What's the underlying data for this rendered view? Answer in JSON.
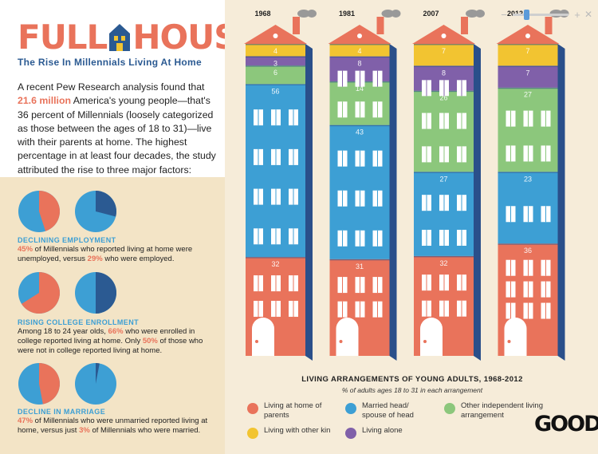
{
  "header": {
    "logo_left": "FULL",
    "logo_right": "HOUSE",
    "subtitle": "The Rise In Millennials Living At Home"
  },
  "intro": {
    "before": "A recent Pew Research analysis found that ",
    "highlight": "21.6 million",
    "after": " America's young people—that's 36 percent of Millennials (loosely categorized as those between the ages of 18 to 31)—live with their parents at home. The highest percentage in at least four decades, the study attributed the rise to three major factors:"
  },
  "factors": [
    {
      "title": "DECLINING EMPLOYMENT",
      "pies": [
        0.45,
        0.29
      ],
      "hl1": "45%",
      "t1": " of Millennials who reported living at home were unemployed, versus ",
      "hl2": "29%",
      "t2": " who were employed."
    },
    {
      "title": "RISING COLLEGE ENROLLMENT",
      "pies": [
        0.66,
        0.5
      ],
      "t0": "Among 18 to 24 year olds, ",
      "hl1": "66%",
      "t1": " who were enrolled in college reported living at home. Only ",
      "hl2": "50%",
      "t2": " of those who were not in college reported living at home."
    },
    {
      "title": "DECLINE IN MARRIAGE",
      "pies": [
        0.47,
        0.03
      ],
      "hl1": "47%",
      "t1": " of Millennials who were unmarried reported living at home, versus just ",
      "hl2": "3%",
      "t2": " of Millennials who were married."
    }
  ],
  "chart_data": {
    "type": "bar",
    "title": "LIVING ARRANGEMENTS OF YOUNG ADULTS, 1968-2012",
    "subtitle": "% of adults ages 18 to 31 in each arrangement",
    "categories": [
      "1968",
      "1981",
      "2007",
      "2012"
    ],
    "stack_order_bottom_to_top": [
      "Living at home of parents",
      "Married head/ spouse of head",
      "Other independent living arrangement",
      "Living alone",
      "Living with other kin"
    ],
    "series": [
      {
        "name": "Living at home of parents",
        "values": [
          32,
          31,
          32,
          36
        ]
      },
      {
        "name": "Married head/ spouse of head",
        "values": [
          56,
          43,
          27,
          23
        ]
      },
      {
        "name": "Other independent living arrangement",
        "values": [
          6,
          14,
          26,
          27
        ]
      },
      {
        "name": "Living alone",
        "values": [
          3,
          8,
          8,
          7
        ]
      },
      {
        "name": "Living with other kin",
        "values": [
          4,
          4,
          7,
          7
        ]
      }
    ],
    "colors": {
      "Living at home of parents": "#e9735b",
      "Married head/ spouse of head": "#3d9fd4",
      "Other independent living arrangement": "#8cc77c",
      "Living alone": "#8060a9",
      "Living with other kin": "#f2c431"
    },
    "ylim": [
      0,
      100
    ]
  },
  "legend": [
    {
      "label": "Living at home of parents",
      "color": "#e9735b"
    },
    {
      "label": "Married head/ spouse of head",
      "color": "#3d9fd4"
    },
    {
      "label": "Other independent living arrangement",
      "color": "#8cc77c"
    },
    {
      "label": "Living with other kin",
      "color": "#f2c431"
    },
    {
      "label": "Living alone",
      "color": "#8060a9"
    }
  ],
  "publisher": "GOOD",
  "icons": {
    "house": "house-icon",
    "zoom_out": "zoom-out-icon",
    "zoom_in": "zoom-in-icon",
    "close": "close-icon"
  }
}
